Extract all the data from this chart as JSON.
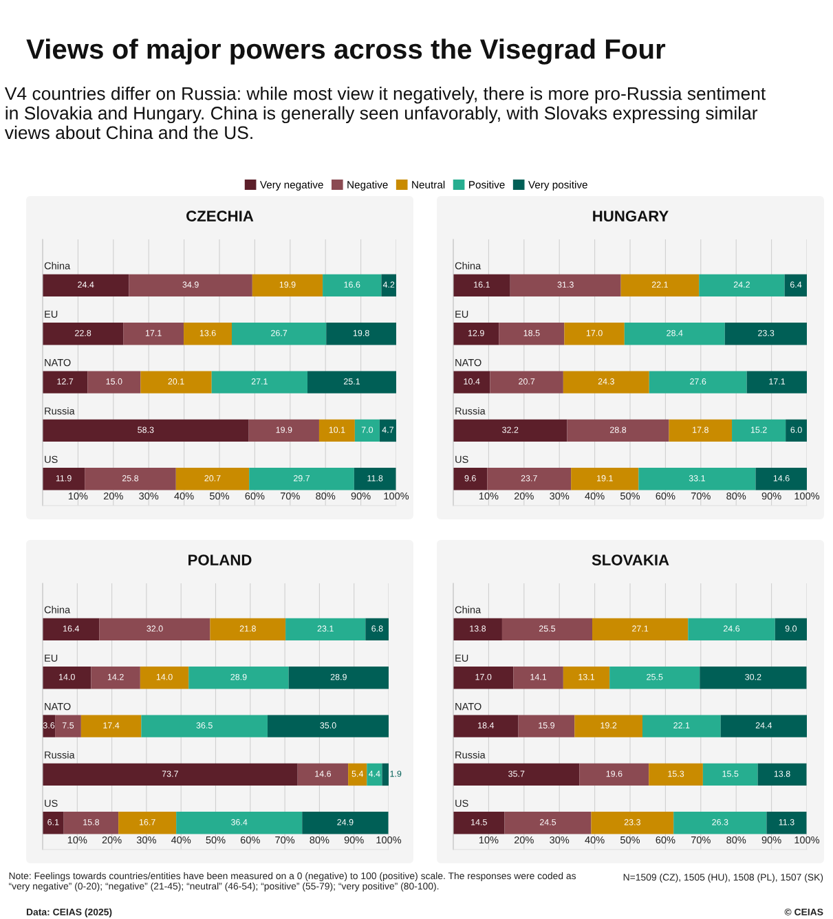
{
  "chart_data": [
    {
      "type": "bar",
      "orientation": "horizontal",
      "stacked": true,
      "title": "CZECHIA",
      "legend": "top",
      "grid": "x",
      "annotations": [
        "Views of major powers across the Visegrad Four",
        "V4 countries differ on Russia: while most view it negatively, there is more pro-Russia sentiment in Slovakia and Hungary. China is generally seen unfavorably, with Slovaks expressing similar views about China and the US."
      ],
      "categories": [
        "China",
        "EU",
        "NATO",
        "Russia",
        "US"
      ],
      "xlim": [
        0,
        100
      ],
      "xticks": [
        {
          "value": 10,
          "label": "10%"
        },
        {
          "value": 20,
          "label": "20%"
        },
        {
          "value": 30,
          "label": "30%"
        },
        {
          "value": 40,
          "label": "40%"
        },
        {
          "value": 50,
          "label": "50%"
        },
        {
          "value": 60,
          "label": "60%"
        },
        {
          "value": 70,
          "label": "70%"
        },
        {
          "value": 80,
          "label": "80%"
        },
        {
          "value": 90,
          "label": "90%"
        },
        {
          "value": 100,
          "label": "100%"
        }
      ],
      "series": [
        {
          "name": "Very negative",
          "color": "#5c1f2a",
          "values": [
            24.4,
            22.8,
            12.7,
            58.3,
            11.9
          ],
          "value_labels": [
            "24.4",
            "22.8",
            "12.7",
            "58.3",
            "11.9"
          ]
        },
        {
          "name": "Negative",
          "color": "#8b4a52",
          "values": [
            34.9,
            17.1,
            15.0,
            19.9,
            25.8
          ],
          "value_labels": [
            "34.9",
            "17.1",
            "15.0",
            "19.9",
            "25.8"
          ]
        },
        {
          "name": "Neutral",
          "color": "#c98b00",
          "values": [
            19.9,
            13.6,
            20.1,
            10.1,
            20.7
          ],
          "value_labels": [
            "19.9",
            "13.6",
            "20.1",
            "10.1",
            "20.7"
          ]
        },
        {
          "name": "Positive",
          "color": "#26ae90",
          "values": [
            16.6,
            26.7,
            27.1,
            7.0,
            29.7
          ],
          "value_labels": [
            "16.6",
            "26.7",
            "27.1",
            "7.0",
            "29.7"
          ]
        },
        {
          "name": "Very positive",
          "color": "#005f56",
          "values": [
            4.2,
            19.8,
            25.1,
            4.7,
            11.8
          ],
          "value_labels": [
            "4.2",
            "19.8",
            "25.1",
            "4.7",
            "11.8"
          ]
        }
      ]
    },
    {
      "type": "bar",
      "orientation": "horizontal",
      "stacked": true,
      "title": "HUNGARY",
      "grid": "x",
      "categories": [
        "China",
        "EU",
        "NATO",
        "Russia",
        "US"
      ],
      "xlim": [
        0,
        100
      ],
      "xticks": [
        {
          "value": 10,
          "label": "10%"
        },
        {
          "value": 20,
          "label": "20%"
        },
        {
          "value": 30,
          "label": "30%"
        },
        {
          "value": 40,
          "label": "40%"
        },
        {
          "value": 50,
          "label": "50%"
        },
        {
          "value": 60,
          "label": "60%"
        },
        {
          "value": 70,
          "label": "70%"
        },
        {
          "value": 80,
          "label": "80%"
        },
        {
          "value": 90,
          "label": "90%"
        },
        {
          "value": 100,
          "label": "100%"
        }
      ],
      "series": [
        {
          "color": "#5c1f2a",
          "values": [
            16.1,
            12.9,
            10.4,
            32.2,
            9.6
          ],
          "value_labels": [
            "16.1",
            "12.9",
            "10.4",
            "32.2",
            "9.6"
          ]
        },
        {
          "color": "#8b4a52",
          "values": [
            31.3,
            18.5,
            20.7,
            28.8,
            23.7
          ],
          "value_labels": [
            "31.3",
            "18.5",
            "20.7",
            "28.8",
            "23.7"
          ]
        },
        {
          "color": "#c98b00",
          "values": [
            22.1,
            17.0,
            24.3,
            17.8,
            19.1
          ],
          "value_labels": [
            "22.1",
            "17.0",
            "24.3",
            "17.8",
            "19.1"
          ]
        },
        {
          "color": "#26ae90",
          "values": [
            24.2,
            28.4,
            27.6,
            15.2,
            33.1
          ],
          "value_labels": [
            "24.2",
            "28.4",
            "27.6",
            "15.2",
            "33.1"
          ]
        },
        {
          "color": "#005f56",
          "values": [
            6.4,
            23.3,
            17.1,
            6.0,
            14.6
          ],
          "value_labels": [
            "6.4",
            "23.3",
            "17.1",
            "6.0",
            "14.6"
          ]
        }
      ]
    },
    {
      "type": "bar",
      "orientation": "horizontal",
      "stacked": true,
      "title": "POLAND",
      "grid": "x",
      "categories": [
        "China",
        "EU",
        "NATO",
        "Russia",
        "US"
      ],
      "xlim": [
        0,
        100
      ],
      "xticks": [
        {
          "value": 10,
          "label": "10%"
        },
        {
          "value": 20,
          "label": "20%"
        },
        {
          "value": 30,
          "label": "30%"
        },
        {
          "value": 40,
          "label": "40%"
        },
        {
          "value": 50,
          "label": "50%"
        },
        {
          "value": 60,
          "label": "60%"
        },
        {
          "value": 70,
          "label": "70%"
        },
        {
          "value": 80,
          "label": "80%"
        },
        {
          "value": 90,
          "label": "90%"
        },
        {
          "value": 100,
          "label": "100%"
        }
      ],
      "series": [
        {
          "color": "#5c1f2a",
          "values": [
            16.4,
            14.0,
            3.6,
            73.7,
            6.1
          ],
          "value_labels": [
            "16.4",
            "14.0",
            "3.6",
            "73.7",
            "6.1"
          ]
        },
        {
          "color": "#8b4a52",
          "values": [
            32.0,
            14.2,
            7.5,
            14.6,
            15.8
          ],
          "value_labels": [
            "32.0",
            "14.2",
            "7.5",
            "14.6",
            "15.8"
          ]
        },
        {
          "color": "#c98b00",
          "values": [
            21.8,
            14.0,
            17.4,
            5.4,
            16.7
          ],
          "value_labels": [
            "21.8",
            "14.0",
            "17.4",
            "5.4",
            "16.7"
          ]
        },
        {
          "color": "#26ae90",
          "values": [
            23.1,
            28.9,
            36.5,
            4.4,
            36.4
          ],
          "value_labels": [
            "23.1",
            "28.9",
            "36.5",
            "4.4",
            "36.4"
          ]
        },
        {
          "color": "#005f56",
          "values": [
            6.8,
            28.9,
            35.0,
            1.9,
            24.9
          ],
          "value_labels": [
            "6.8",
            "28.9",
            "35.0",
            "1.9",
            "24.9"
          ]
        }
      ]
    },
    {
      "type": "bar",
      "orientation": "horizontal",
      "stacked": true,
      "title": "SLOVAKIA",
      "grid": "x",
      "annotations": [
        "Note: Feelings towards countries/entities have been measured on a 0 (negative) to 100 (positive) scale. The responses were coded as “very negative” (0-20); “negative” (21-45); “neutral” (46-54); “positive” (55-79); “very positive” (80-100).",
        "N=1509 (CZ), 1505 (HU), 1508 (PL), 1507 (SK)",
        "Data: CEIAS (2025)",
        "© CEIAS"
      ],
      "categories": [
        "China",
        "EU",
        "NATO",
        "Russia",
        "US"
      ],
      "xlim": [
        0,
        100
      ],
      "xticks": [
        {
          "value": 10,
          "label": "10%"
        },
        {
          "value": 20,
          "label": "20%"
        },
        {
          "value": 30,
          "label": "30%"
        },
        {
          "value": 40,
          "label": "40%"
        },
        {
          "value": 50,
          "label": "50%"
        },
        {
          "value": 60,
          "label": "60%"
        },
        {
          "value": 70,
          "label": "70%"
        },
        {
          "value": 80,
          "label": "80%"
        },
        {
          "value": 90,
          "label": "90%"
        },
        {
          "value": 100,
          "label": "100%"
        }
      ],
      "series": [
        {
          "color": "#5c1f2a",
          "values": [
            13.8,
            17.0,
            18.4,
            35.7,
            14.5
          ],
          "value_labels": [
            "13.8",
            "17.0",
            "18.4",
            "35.7",
            "14.5"
          ]
        },
        {
          "color": "#8b4a52",
          "values": [
            25.5,
            14.1,
            15.9,
            19.6,
            24.5
          ],
          "value_labels": [
            "25.5",
            "14.1",
            "15.9",
            "19.6",
            "24.5"
          ]
        },
        {
          "color": "#c98b00",
          "values": [
            27.1,
            13.1,
            19.2,
            15.3,
            23.3
          ],
          "value_labels": [
            "27.1",
            "13.1",
            "19.2",
            "15.3",
            "23.3"
          ]
        },
        {
          "color": "#26ae90",
          "values": [
            24.6,
            25.5,
            22.1,
            15.5,
            26.3
          ],
          "value_labels": [
            "24.6",
            "25.5",
            "22.1",
            "15.5",
            "26.3"
          ]
        },
        {
          "color": "#005f56",
          "values": [
            9.0,
            30.2,
            24.4,
            13.8,
            11.3
          ],
          "value_labels": [
            "9.0",
            "30.2",
            "24.4",
            "13.8",
            "11.3"
          ]
        }
      ]
    }
  ]
}
